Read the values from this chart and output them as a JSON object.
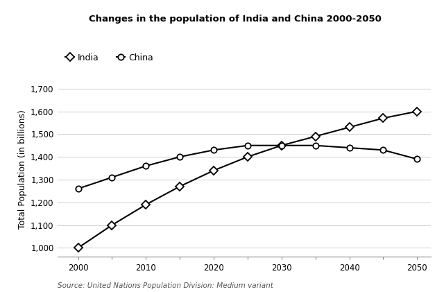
{
  "title": "Changes in the population of India and China 2000-2050",
  "ylabel": "Total Population (in billions)",
  "source": "Source: United Nations Population Division: Medium variant",
  "india": {
    "label": "India",
    "marker": "D",
    "x": [
      2000,
      2005,
      2010,
      2015,
      2020,
      2025,
      2030,
      2035,
      2040,
      2045,
      2050
    ],
    "y": [
      1000,
      1100,
      1190,
      1270,
      1340,
      1400,
      1450,
      1490,
      1530,
      1570,
      1600
    ]
  },
  "china": {
    "label": "China",
    "marker": "o",
    "x": [
      2000,
      2005,
      2010,
      2015,
      2020,
      2025,
      2030,
      2035,
      2040,
      2045,
      2050
    ],
    "y": [
      1260,
      1310,
      1360,
      1400,
      1430,
      1450,
      1450,
      1450,
      1440,
      1430,
      1390
    ]
  },
  "xlim": [
    1997,
    2052
  ],
  "ylim": [
    960,
    1730
  ],
  "xticks": [
    2000,
    2005,
    2010,
    2015,
    2020,
    2025,
    2030,
    2035,
    2040,
    2045,
    2050
  ],
  "xtick_labels": [
    "2000",
    "",
    "2010",
    "",
    "2020",
    "",
    "2030",
    "",
    "2040",
    "",
    "2050"
  ],
  "yticks": [
    1000,
    1100,
    1200,
    1300,
    1400,
    1500,
    1600,
    1700
  ],
  "ytick_labels": [
    "1,000",
    "1,100",
    "1,200",
    "1,300",
    "1,400",
    "1,500",
    "1,600",
    "1,700"
  ],
  "color": "#000000",
  "linewidth": 1.5,
  "markersize": 6,
  "title_fontsize": 9.5,
  "label_fontsize": 9,
  "tick_fontsize": 8.5,
  "source_fontsize": 7.5,
  "background_color": "#ffffff",
  "grid_color": "#cccccc"
}
